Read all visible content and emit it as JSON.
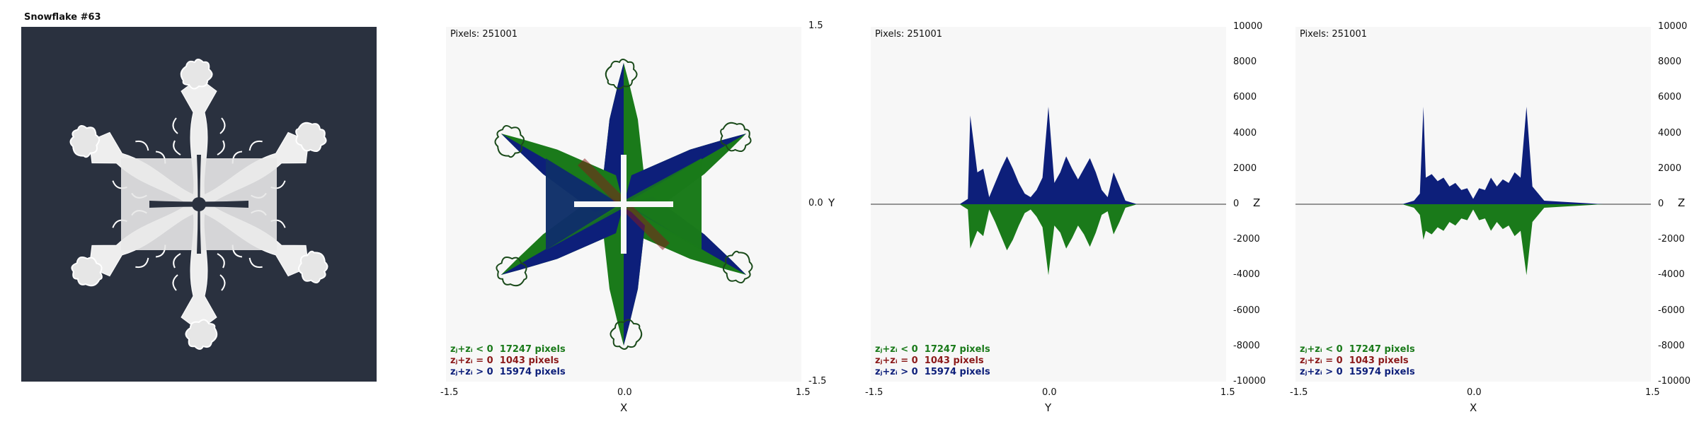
{
  "panel1": {
    "title": "Snowflake #63"
  },
  "colors": {
    "negative": "#1a7a1a",
    "zero": "#8b1a1a",
    "positive": "#0d1f7a",
    "dark_bg": "#2a313f",
    "plot_bg": "#f7f7f7"
  },
  "stats_labels": {
    "negative": "zⱼ+zᵢ < 0",
    "zero": "zⱼ+zᵢ = 0",
    "positive": "zⱼ+zᵢ > 0"
  },
  "stats_values": {
    "negative": "17247 pixels",
    "zero": "1043 pixels",
    "positive": "15974 pixels"
  },
  "pixels_label": "Pixels: 251001",
  "xy_panel": {
    "xticks": [
      "-1.5",
      "0.0",
      "1.5"
    ],
    "yticks": [
      "1.5",
      "0.0",
      "-1.5"
    ],
    "xlabel": "X",
    "ylabel": "Y"
  },
  "z_ticks": [
    "10000",
    "8000",
    "6000",
    "4000",
    "2000",
    "0",
    "-2000",
    "-4000",
    "-6000",
    "-8000",
    "-10000"
  ],
  "yz_panel": {
    "xticks": [
      "-1.5",
      "0.0",
      "1.5"
    ],
    "xlabel": "Y",
    "zlabel": "Z"
  },
  "xz_panel": {
    "xticks": [
      "-1.5",
      "0.0",
      "1.5"
    ],
    "xlabel": "X",
    "zlabel": "Z"
  },
  "chart_data": [
    {
      "type": "area",
      "panel": "YZ projection",
      "x_range": [
        -1.5,
        1.5
      ],
      "ylim": [
        -10000,
        10000
      ],
      "series": [
        {
          "x": [
            -0.75,
            -0.68,
            -0.66,
            -0.6,
            -0.55,
            -0.5,
            -0.45,
            -0.4,
            -0.35,
            -0.3,
            -0.25,
            -0.2,
            -0.15,
            -0.1,
            -0.05,
            0.0,
            0.05,
            0.1,
            0.15,
            0.2,
            0.25,
            0.3,
            0.35,
            0.4,
            0.45,
            0.5,
            0.55,
            0.6,
            0.65,
            0.75
          ],
          "values": [
            0,
            300,
            5000,
            1800,
            2000,
            400,
            1200,
            2000,
            2700,
            2000,
            1200,
            600,
            400,
            800,
            1500,
            5500,
            1200,
            1800,
            2700,
            2000,
            1400,
            2000,
            2600,
            1800,
            800,
            400,
            1800,
            1000,
            200,
            0
          ]
        },
        {
          "x": [
            -0.75,
            -0.68,
            -0.66,
            -0.6,
            -0.55,
            -0.5,
            -0.45,
            -0.4,
            -0.35,
            -0.3,
            -0.25,
            -0.2,
            -0.15,
            -0.1,
            -0.05,
            0.0,
            0.05,
            0.1,
            0.15,
            0.2,
            0.25,
            0.3,
            0.35,
            0.4,
            0.45,
            0.5,
            0.55,
            0.6,
            0.65,
            0.75
          ],
          "values": [
            0,
            -300,
            -2500,
            -1500,
            -1800,
            -300,
            -1000,
            -1800,
            -2600,
            -2000,
            -1200,
            -500,
            -300,
            -700,
            -1300,
            -4000,
            -1200,
            -1600,
            -2500,
            -1900,
            -1200,
            -1700,
            -2400,
            -1600,
            -600,
            -400,
            -1700,
            -1000,
            -200,
            0
          ]
        }
      ]
    },
    {
      "type": "area",
      "panel": "XZ projection",
      "x_range": [
        -1.5,
        1.5
      ],
      "ylim": [
        -10000,
        10000
      ],
      "series": [
        {
          "x": [
            -1.1,
            -0.6,
            -0.5,
            -0.45,
            -0.42,
            -0.4,
            -0.35,
            -0.3,
            -0.25,
            -0.2,
            -0.15,
            -0.1,
            -0.05,
            0.0,
            0.05,
            0.1,
            0.15,
            0.2,
            0.25,
            0.3,
            0.35,
            0.4,
            0.45,
            0.5,
            0.6,
            1.1
          ],
          "values": [
            0,
            0,
            200,
            600,
            5500,
            1500,
            1700,
            1300,
            1500,
            1000,
            1200,
            800,
            900,
            300,
            900,
            800,
            1500,
            1000,
            1400,
            1200,
            1800,
            1500,
            5500,
            1000,
            200,
            0
          ]
        },
        {
          "x": [
            -1.1,
            -0.6,
            -0.5,
            -0.45,
            -0.42,
            -0.4,
            -0.35,
            -0.3,
            -0.25,
            -0.2,
            -0.15,
            -0.1,
            -0.05,
            0.0,
            0.05,
            0.1,
            0.15,
            0.2,
            0.25,
            0.3,
            0.35,
            0.4,
            0.45,
            0.5,
            0.6,
            1.1
          ],
          "values": [
            0,
            0,
            -200,
            -600,
            -2000,
            -1500,
            -1700,
            -1300,
            -1500,
            -1000,
            -1200,
            -800,
            -900,
            -300,
            -900,
            -800,
            -1500,
            -1000,
            -1400,
            -1200,
            -1800,
            -1500,
            -4000,
            -1000,
            -200,
            0
          ]
        }
      ]
    }
  ]
}
